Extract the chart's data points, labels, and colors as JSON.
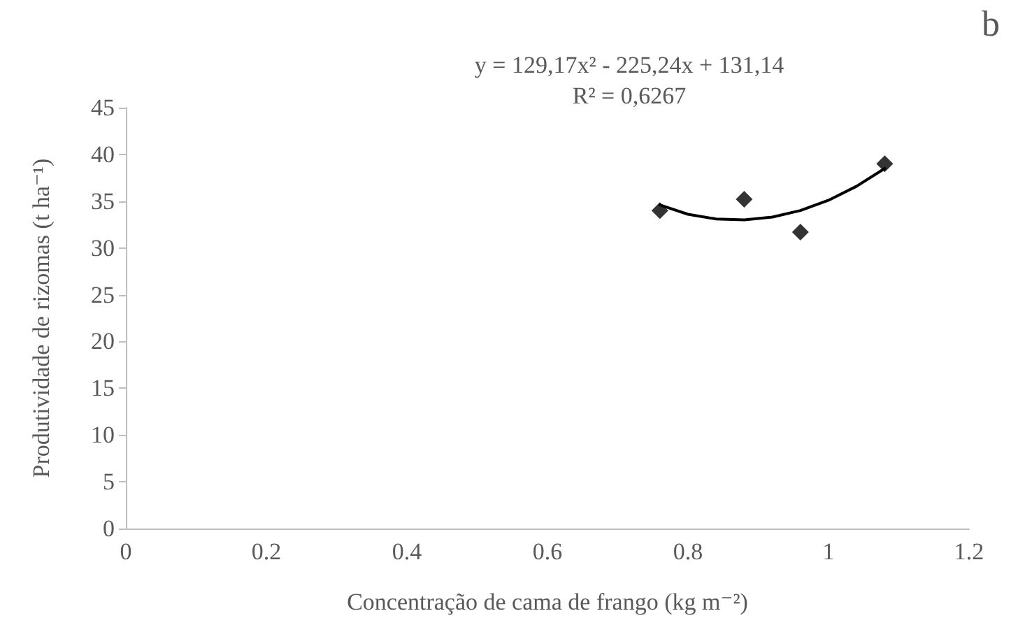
{
  "chart_data": {
    "type": "scatter",
    "xlabel": "Concentração de cama de frango (kg m⁻²)",
    "ylabel": "Produtividade de rizomas (t ha⁻¹)",
    "annotations": [
      "b",
      "y = 129,17x² - 225,24x + 131,14",
      "R² = 0,6267"
    ],
    "x": [
      0.76,
      0.88,
      0.96,
      1.08
    ],
    "series": [
      {
        "color": "#000000",
        "marker": "diamond",
        "values": [
          34,
          35.2,
          31.7,
          39
        ]
      },
      {
        "type": "line",
        "color": "#000000",
        "marker": "none",
        "line_style": "solid",
        "x": [
          0.76,
          0.8,
          0.84,
          0.88,
          0.92,
          0.96,
          1.0,
          1.04,
          1.08
        ],
        "values": [
          34.6,
          33.6,
          33.1,
          33.0,
          33.3,
          34.0,
          35.1,
          36.6,
          38.5
        ]
      }
    ],
    "xlim": [
      0,
      1.2
    ],
    "xticks": [
      0,
      0.2,
      0.4,
      0.6,
      0.8,
      1,
      1.2
    ],
    "ylim": [
      0,
      45
    ],
    "yticks": [
      0,
      5,
      10,
      15,
      20,
      25,
      30,
      35,
      40,
      45
    ],
    "grid": false
  }
}
